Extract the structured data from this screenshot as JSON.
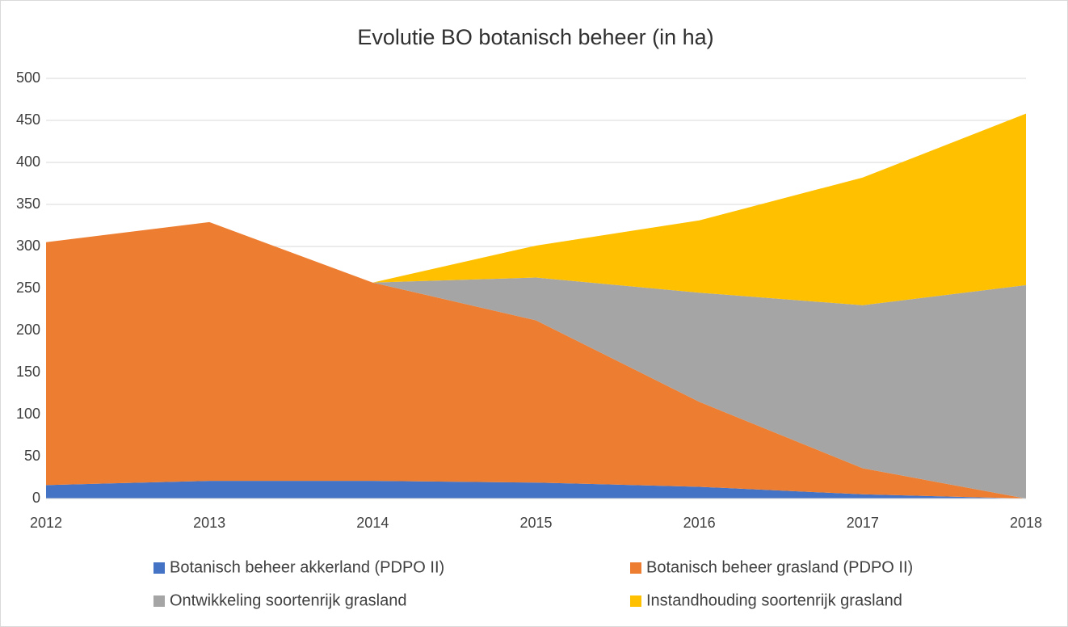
{
  "chart_data": {
    "type": "stacked-area",
    "title": "Evolutie BO botanisch beheer (in ha)",
    "x": [
      "2012",
      "2013",
      "2014",
      "2015",
      "2016",
      "2017",
      "2018"
    ],
    "series": [
      {
        "name": "Botanisch beheer akkerland (PDPO II)",
        "color": "#4472c4",
        "values": [
          16,
          21,
          21,
          19,
          14,
          5,
          0
        ]
      },
      {
        "name": "Botanisch beheer grasland (PDPO II)",
        "color": "#ed7d31",
        "values": [
          289,
          308,
          236,
          193,
          101,
          31,
          0
        ]
      },
      {
        "name": "Ontwikkeling soortenrijk grasland",
        "color": "#a5a5a5",
        "values": [
          0,
          0,
          0,
          51,
          130,
          194,
          254
        ]
      },
      {
        "name": "Instandhouding soortenrijk grasland",
        "color": "#ffc000",
        "values": [
          0,
          0,
          0,
          38,
          86,
          152,
          204
        ]
      }
    ],
    "ylim": [
      0,
      500
    ],
    "yticks": [
      0,
      50,
      100,
      150,
      200,
      250,
      300,
      350,
      400,
      450,
      500
    ],
    "grid": true,
    "legend": "bottom"
  }
}
